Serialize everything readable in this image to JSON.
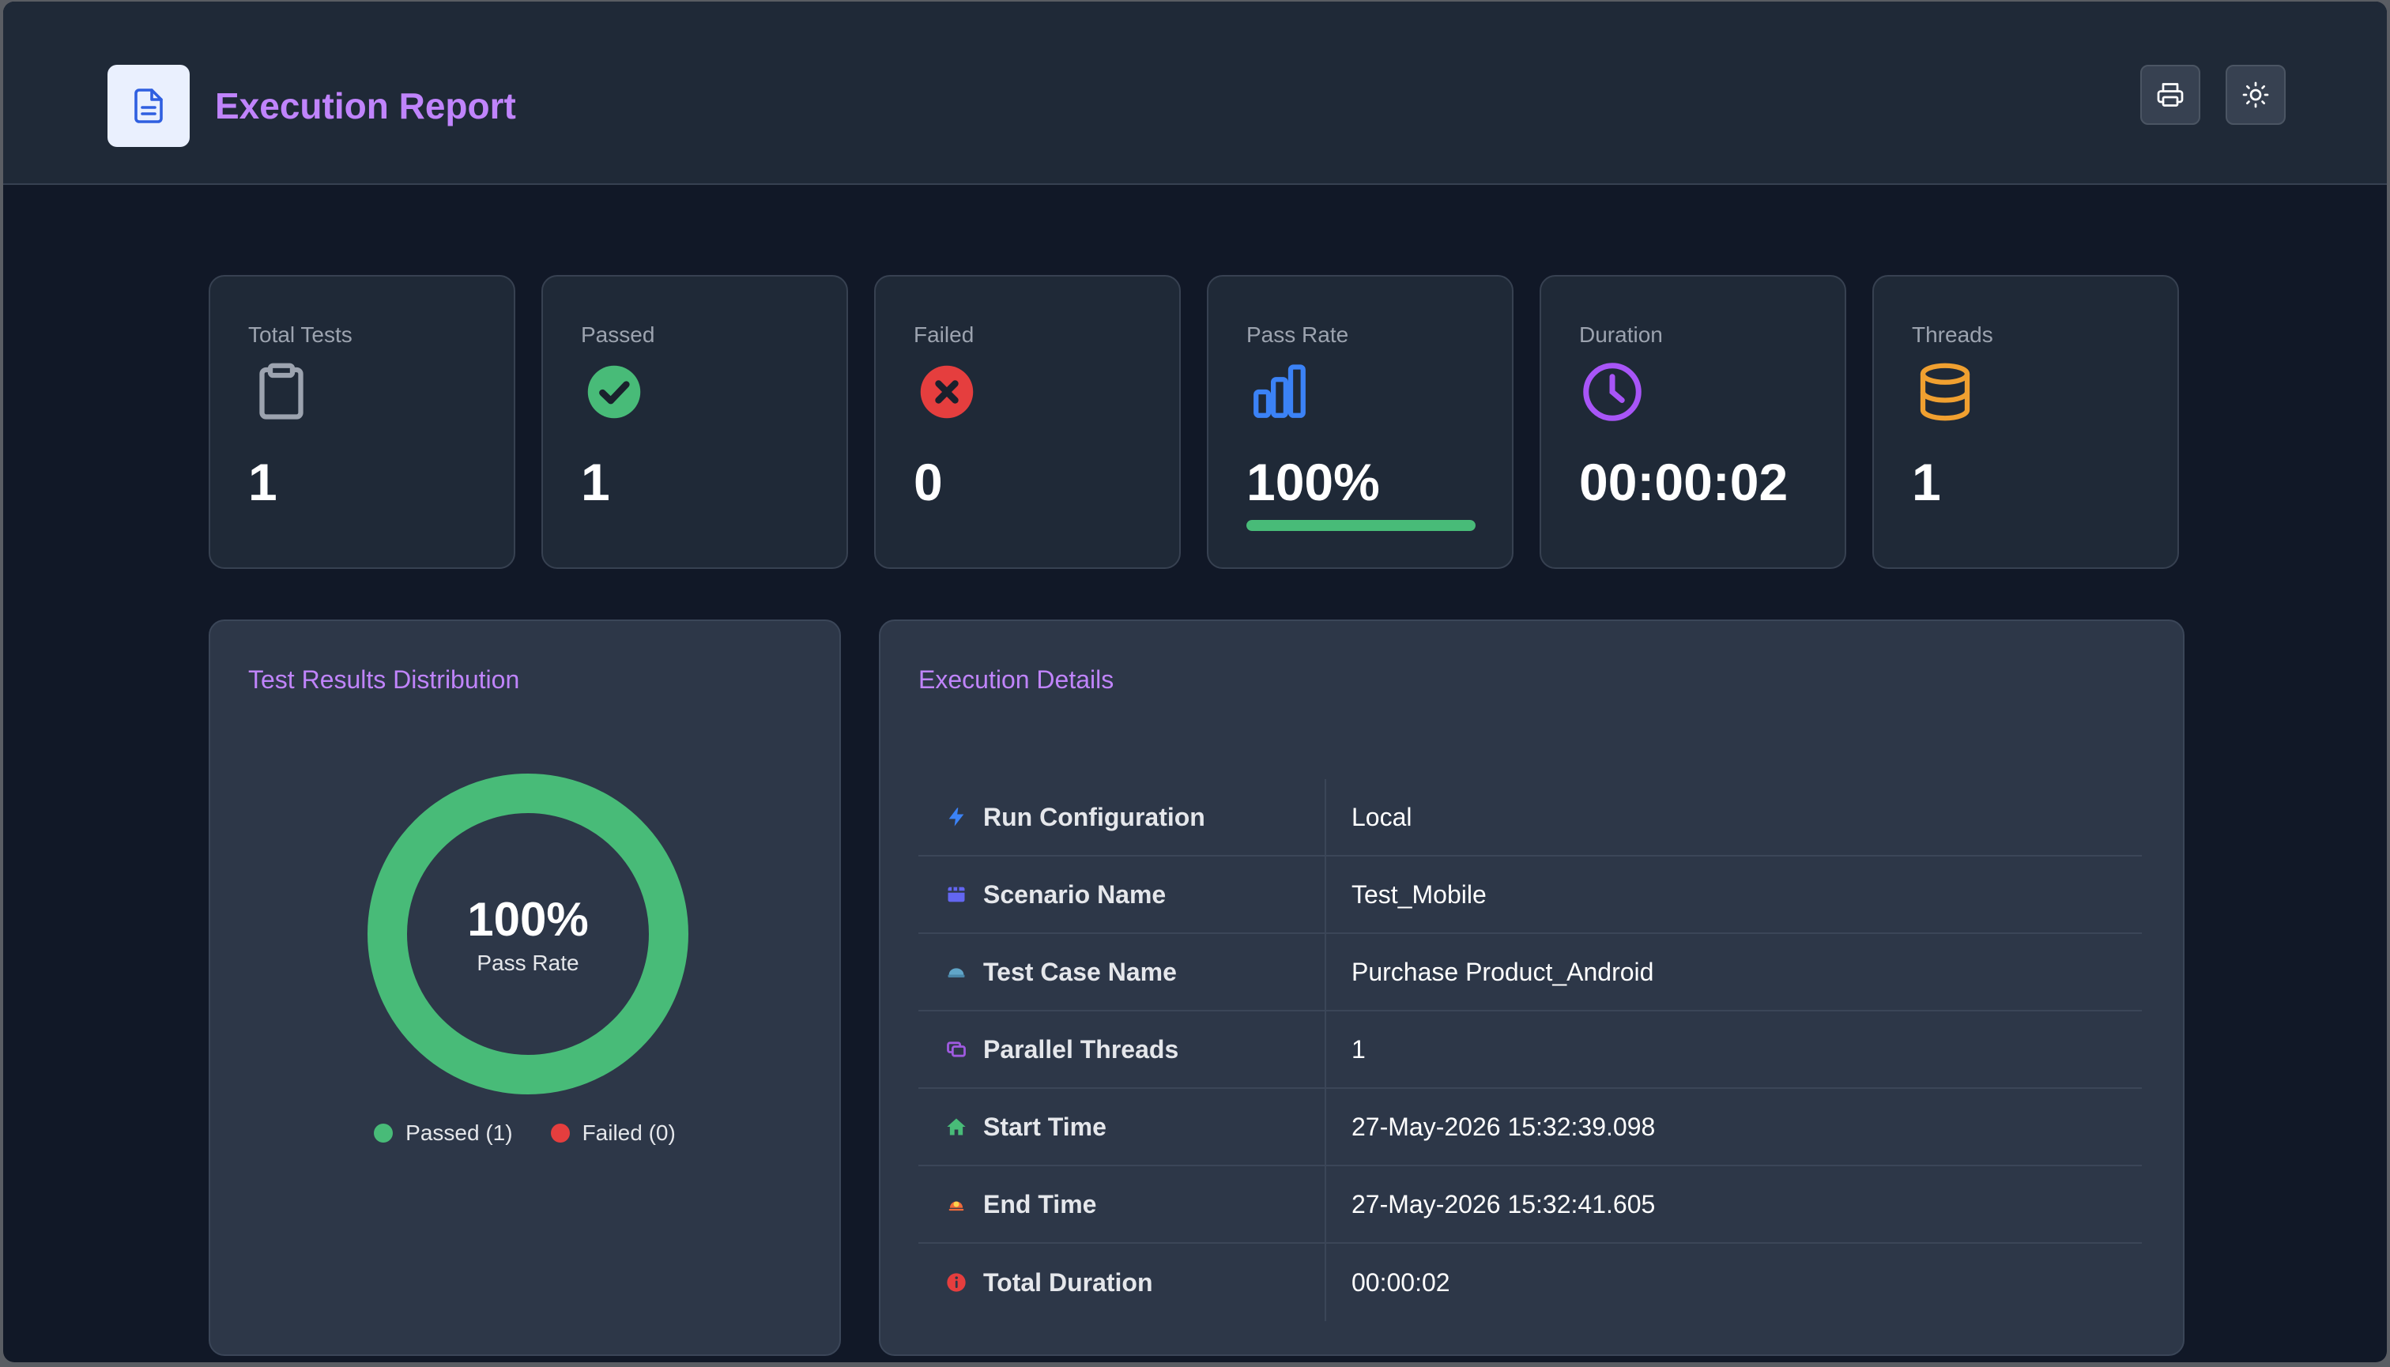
{
  "app": {
    "title": "Execution Report",
    "icon": "document-icon",
    "actions": [
      {
        "name": "print-button",
        "icon": "printer-icon"
      },
      {
        "name": "theme-toggle-button",
        "icon": "sun-icon"
      }
    ]
  },
  "stats": {
    "total_tests": {
      "label": "Total Tests",
      "value": "1",
      "icon": "clipboard-icon",
      "color": "#9ca3af"
    },
    "passed": {
      "label": "Passed",
      "value": "1",
      "icon": "check-circle-icon",
      "color": "#48bb78"
    },
    "failed": {
      "label": "Failed",
      "value": "0",
      "icon": "x-circle-icon",
      "color": "#e53e3e"
    },
    "pass_rate": {
      "label": "Pass Rate",
      "value": "100%",
      "icon": "bar-chart-icon",
      "color": "#3b82f6",
      "progress": 1.0,
      "progress_color": "#48bb78"
    },
    "duration": {
      "label": "Duration",
      "value": "00:00:02",
      "icon": "clock-icon",
      "color": "#a855f7"
    },
    "threads": {
      "label": "Threads",
      "value": "1",
      "icon": "database-icon",
      "color": "#f0a030"
    }
  },
  "distribution": {
    "title": "Test Results Distribution",
    "center_value": "100%",
    "center_label": "Pass Rate",
    "legend": [
      {
        "label": "Passed (1)",
        "color": "#48bb78"
      },
      {
        "label": "Failed (0)",
        "color": "#e53e3e"
      }
    ],
    "chart_data": {
      "type": "pie",
      "categories": [
        "Passed",
        "Failed"
      ],
      "values": [
        1,
        0
      ],
      "colors": [
        "#48bb78",
        "#e53e3e"
      ]
    }
  },
  "details": {
    "title": "Execution Details",
    "rows": [
      {
        "key": "Run Configuration",
        "value": "Local",
        "icon": "bolt-icon",
        "color": "#3b82f6"
      },
      {
        "key": "Scenario Name",
        "value": "Test_Mobile",
        "icon": "film-icon",
        "color": "#6366f1"
      },
      {
        "key": "Test Case Name",
        "value": "Purchase Product_Android",
        "icon": "cap-icon",
        "color": "#60a5c8"
      },
      {
        "key": "Parallel Threads",
        "value": "1",
        "icon": "layers-icon",
        "color": "#9f5ae0"
      },
      {
        "key": "Start Time",
        "value": "27-May-2026 15:32:39.098",
        "icon": "home-icon",
        "color": "#48bb78"
      },
      {
        "key": "End Time",
        "value": "27-May-2026 15:32:41.605",
        "icon": "sunset-icon",
        "color": "#f06a3a"
      },
      {
        "key": "Total Duration",
        "value": "00:00:02",
        "icon": "info-icon",
        "color": "#e53e3e"
      }
    ]
  }
}
